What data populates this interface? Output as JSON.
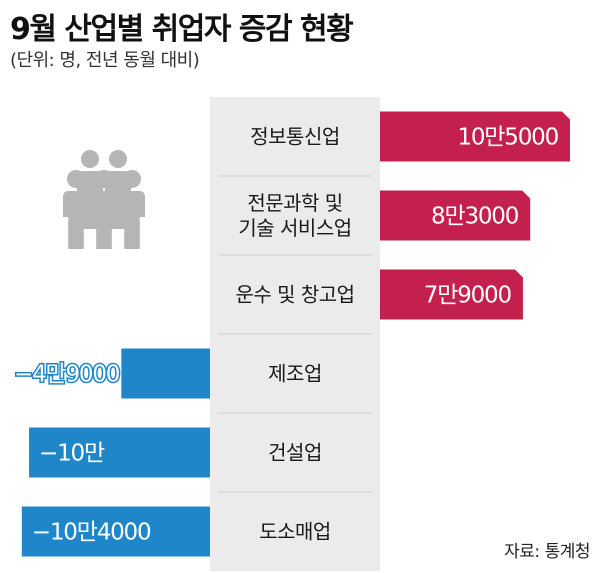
{
  "header": {
    "title": "9월 산업별 취업자 증감 현황",
    "subtitle": "(단위: 명, 전년 동월 대비)"
  },
  "source": "자료: 통계청",
  "colors": {
    "positive": "#c3204d",
    "negative": "#1f86c9",
    "panel": "#ebebeb",
    "divider": "#cfcfcf",
    "icon": "#b5b5b5"
  },
  "icon": "people-group-icon",
  "chart_data": {
    "type": "bar",
    "orientation": "horizontal-diverging",
    "title": "9월 산업별 취업자 증감 현황",
    "unit": "명",
    "categories": [
      [
        "정보통신업"
      ],
      [
        "전문과학 및",
        "기술 서비스업"
      ],
      [
        "운수 및 창고업"
      ],
      [
        "제조업"
      ],
      [
        "건설업"
      ],
      [
        "도소매업"
      ]
    ],
    "values": [
      105000,
      83000,
      79000,
      -49000,
      -100000,
      -104000
    ],
    "value_labels": [
      "10만5000",
      "8만3000",
      "7만9000",
      "−4만9000",
      "−10만",
      "−10만4000"
    ]
  }
}
